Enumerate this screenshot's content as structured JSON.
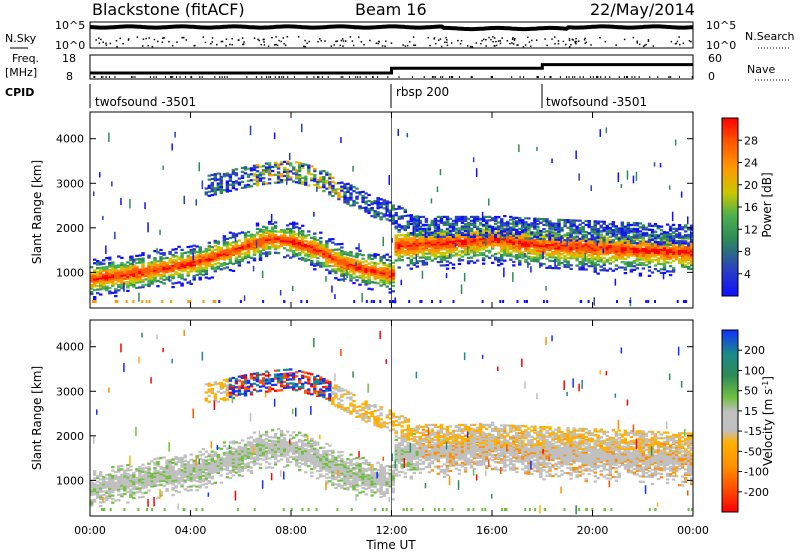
{
  "header": {
    "station": "Blackstone (fitACF)",
    "beam": "Beam 16",
    "date": "22/May/2014"
  },
  "colors": {
    "power_scale": [
      "#1010ff",
      "#2a40c0",
      "#2e8b57",
      "#4caf50",
      "#c8c800",
      "#ff9800",
      "#ff5a00",
      "#ff0000"
    ],
    "velocity_scale": [
      "#ff0000",
      "#ff5000",
      "#ff9000",
      "#ffb000",
      "#c0c0c0",
      "#70c040",
      "#2e8b57",
      "#1a8a8a",
      "#1030ff"
    ]
  },
  "chart_data": [
    {
      "type": "line",
      "panel": "noise",
      "left_label": "N.Sky",
      "right_label": "N.Search",
      "left_ticks": [
        "10^5",
        "10^0"
      ],
      "right_ticks": [
        "10^5",
        "10^0"
      ]
    },
    {
      "type": "line",
      "panel": "frequency",
      "left_label_1": "Freq.",
      "left_label_2": "[MHz]",
      "right_label": "Nave",
      "left_ticks": [
        "18",
        "8"
      ],
      "right_ticks": [
        "60",
        "0"
      ],
      "steps": [
        {
          "x_start": 0.0,
          "x_end": 12.0,
          "freq": 10.5
        },
        {
          "x_start": 12.0,
          "x_end": 18.0,
          "freq": 12.5
        },
        {
          "x_start": 18.0,
          "x_end": 24.0,
          "freq": 14.0
        }
      ],
      "xlim": [
        0,
        24
      ],
      "ylim": [
        8,
        18
      ]
    },
    {
      "type": "table",
      "panel": "cpid",
      "label": "CPID",
      "segments": [
        {
          "name": "twofsound -3501",
          "start": 0.0
        },
        {
          "name": "rbsp 200",
          "start": 12.0
        },
        {
          "name": "twofsound -3501",
          "start": 18.0
        }
      ]
    },
    {
      "type": "heatmap",
      "panel": "power",
      "ylabel": "Slant Range [km]",
      "yticks": [
        1000,
        2000,
        3000,
        4000
      ],
      "ylim": [
        200,
        4600
      ],
      "xlim": [
        0,
        24
      ],
      "colorbar_label": "Power [dB]",
      "colorbar_ticks": [
        "28",
        "24",
        "20",
        "16",
        "12",
        "8",
        "4"
      ],
      "main_band": [
        [
          0,
          850
        ],
        [
          2,
          1000
        ],
        [
          4,
          1200
        ],
        [
          6,
          1550
        ],
        [
          7,
          1750
        ],
        [
          8,
          1700
        ],
        [
          9,
          1500
        ],
        [
          10,
          1200
        ],
        [
          11,
          1050
        ],
        [
          12,
          950
        ],
        [
          12.05,
          1600
        ],
        [
          14,
          1650
        ],
        [
          16,
          1750
        ],
        [
          18,
          1600
        ],
        [
          20,
          1550
        ],
        [
          22,
          1500
        ],
        [
          24,
          1450
        ]
      ],
      "upper_band": [
        [
          4.5,
          2900
        ],
        [
          6,
          3100
        ],
        [
          7,
          3200
        ],
        [
          8,
          3250
        ],
        [
          9,
          3100
        ],
        [
          10,
          2800
        ],
        [
          11,
          2500
        ],
        [
          12,
          2300
        ],
        [
          13,
          2000
        ],
        [
          16,
          2000
        ],
        [
          20,
          1900
        ],
        [
          24,
          1800
        ]
      ]
    },
    {
      "type": "heatmap",
      "panel": "velocity",
      "ylabel": "Slant Range [km]",
      "yticks": [
        1000,
        2000,
        3000,
        4000
      ],
      "ylim": [
        200,
        4600
      ],
      "xlim": [
        0,
        24
      ],
      "xticks": [
        "00:00",
        "04:00",
        "08:00",
        "12:00",
        "16:00",
        "20:00",
        "00:00"
      ],
      "xlabel": "Time UT",
      "colorbar_label": "Velocity [m s-1]",
      "colorbar_ticks": [
        "200",
        "100",
        "50",
        "15",
        "-15",
        "-50",
        "-100",
        "-200"
      ]
    }
  ]
}
